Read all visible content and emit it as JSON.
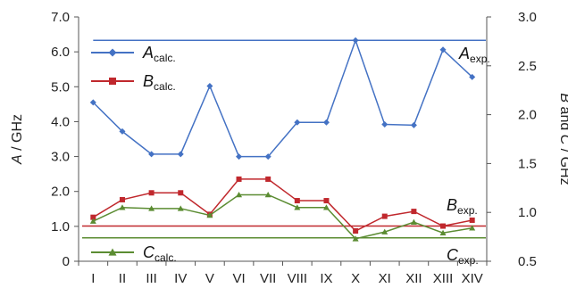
{
  "chart_data": {
    "type": "line",
    "categories": [
      "I",
      "II",
      "III",
      "IV",
      "V",
      "VI",
      "VII",
      "VIII",
      "IX",
      "X",
      "XI",
      "XII",
      "XIII",
      "XIV"
    ],
    "y_left": {
      "label_italic": "A",
      "label_rest": " / GHz",
      "range": [
        0,
        7
      ],
      "ticks": [
        "0",
        "1.0",
        "2.0",
        "3.0",
        "4.0",
        "5.0",
        "6.0",
        "7.0"
      ]
    },
    "y_right": {
      "label_italic_1": "B",
      "label_mid": " and ",
      "label_italic_2": "C",
      "label_rest": " / GHz",
      "range": [
        0.5,
        3.0
      ],
      "ticks": [
        "0.5",
        "1.0",
        "1.5",
        "2.0",
        "2.5",
        "3.0"
      ]
    },
    "series": [
      {
        "name_main": "A",
        "name_sub": "calc.",
        "axis": "left",
        "color": "#4472C4",
        "marker": "diamond",
        "values": [
          4.55,
          3.72,
          3.07,
          3.07,
          5.02,
          3.0,
          3.0,
          3.98,
          3.98,
          6.33,
          3.92,
          3.9,
          6.06,
          5.28
        ]
      },
      {
        "name_main": "B",
        "name_sub": "calc.",
        "axis": "right",
        "color": "#C0282D",
        "marker": "square",
        "values": [
          0.95,
          1.13,
          1.2,
          1.2,
          0.98,
          1.34,
          1.34,
          1.12,
          1.12,
          0.81,
          0.96,
          1.01,
          0.86,
          0.92
        ]
      },
      {
        "name_main": "C",
        "name_sub": "calc.",
        "axis": "right",
        "color": "#5B8C32",
        "marker": "triangle",
        "values": [
          0.91,
          1.05,
          1.04,
          1.04,
          0.97,
          1.18,
          1.18,
          1.05,
          1.05,
          0.73,
          0.8,
          0.9,
          0.79,
          0.84
        ]
      }
    ],
    "reference_lines": [
      {
        "label_main": "A",
        "label_sub": "exp.",
        "axis": "left",
        "value": 6.33,
        "color": "#4472C4"
      },
      {
        "label_main": "B",
        "label_sub": "exp.",
        "axis": "right",
        "value": 0.86,
        "color": "#C0282D"
      },
      {
        "label_main": "C",
        "label_sub": "exp.",
        "axis": "right",
        "value": 0.74,
        "color": "#5B8C32"
      }
    ],
    "legend_position": "left"
  }
}
